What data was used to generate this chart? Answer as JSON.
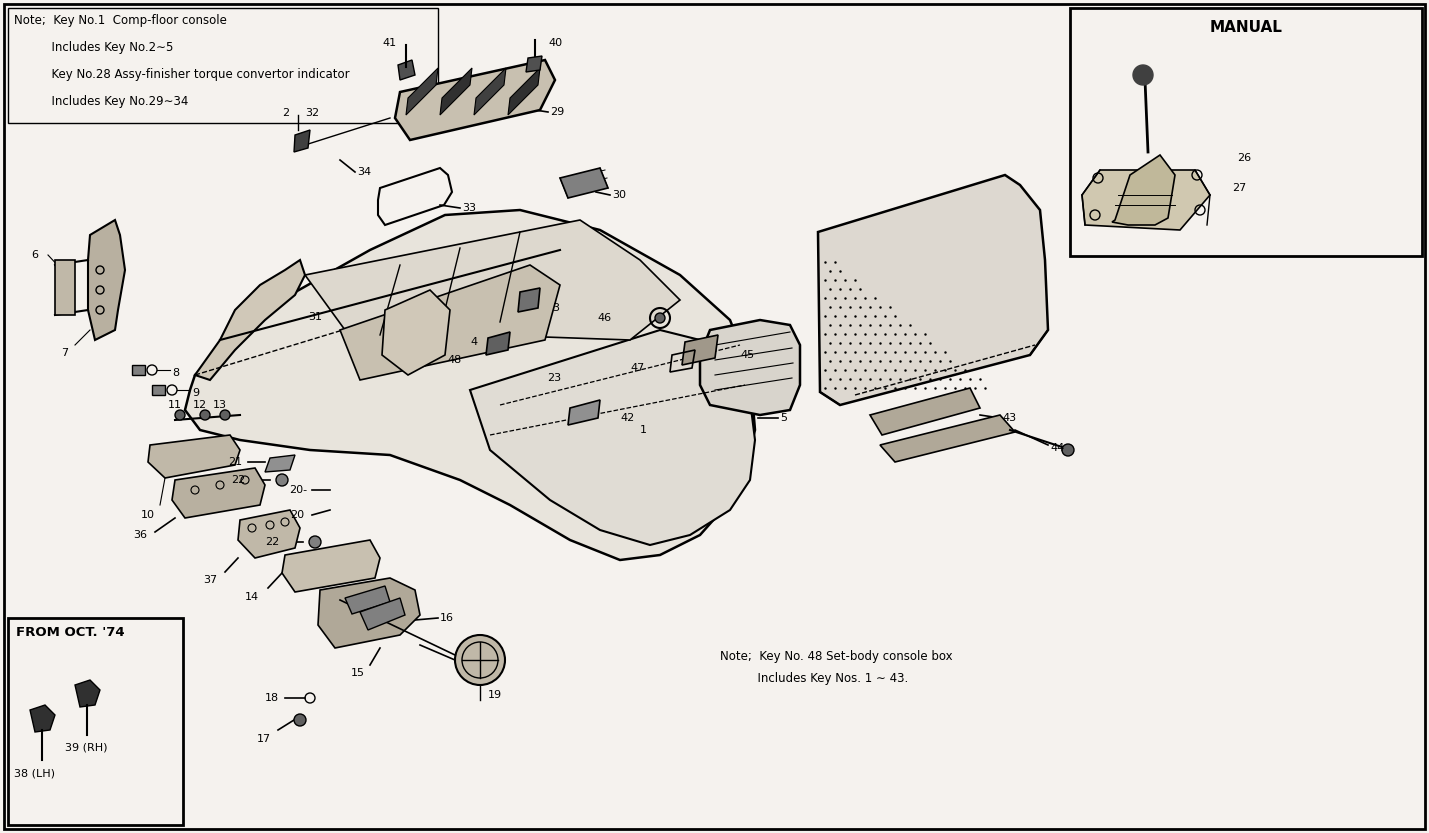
{
  "bg_color": "#f5f2ee",
  "border_color": "#000000",
  "fig_width": 14.29,
  "fig_height": 8.33,
  "dpi": 100,
  "notes_lines": [
    "Note;  Key No.1  Comp-floor console",
    "          Includes Key No.2∼5",
    "          Key No.28 Assy-finisher torque convertor indicator",
    "          Includes Key No.29∼34"
  ],
  "note2_line1": "Note;  Key No. 48 Set-body console box",
  "note2_line2": "          Includes Key Nos. 1 ∼ 43.",
  "manual_label": "MANUAL",
  "from_oct_label": "FROM OCT. '74",
  "line_color": "#000000",
  "part_color": "#1a1a1a"
}
